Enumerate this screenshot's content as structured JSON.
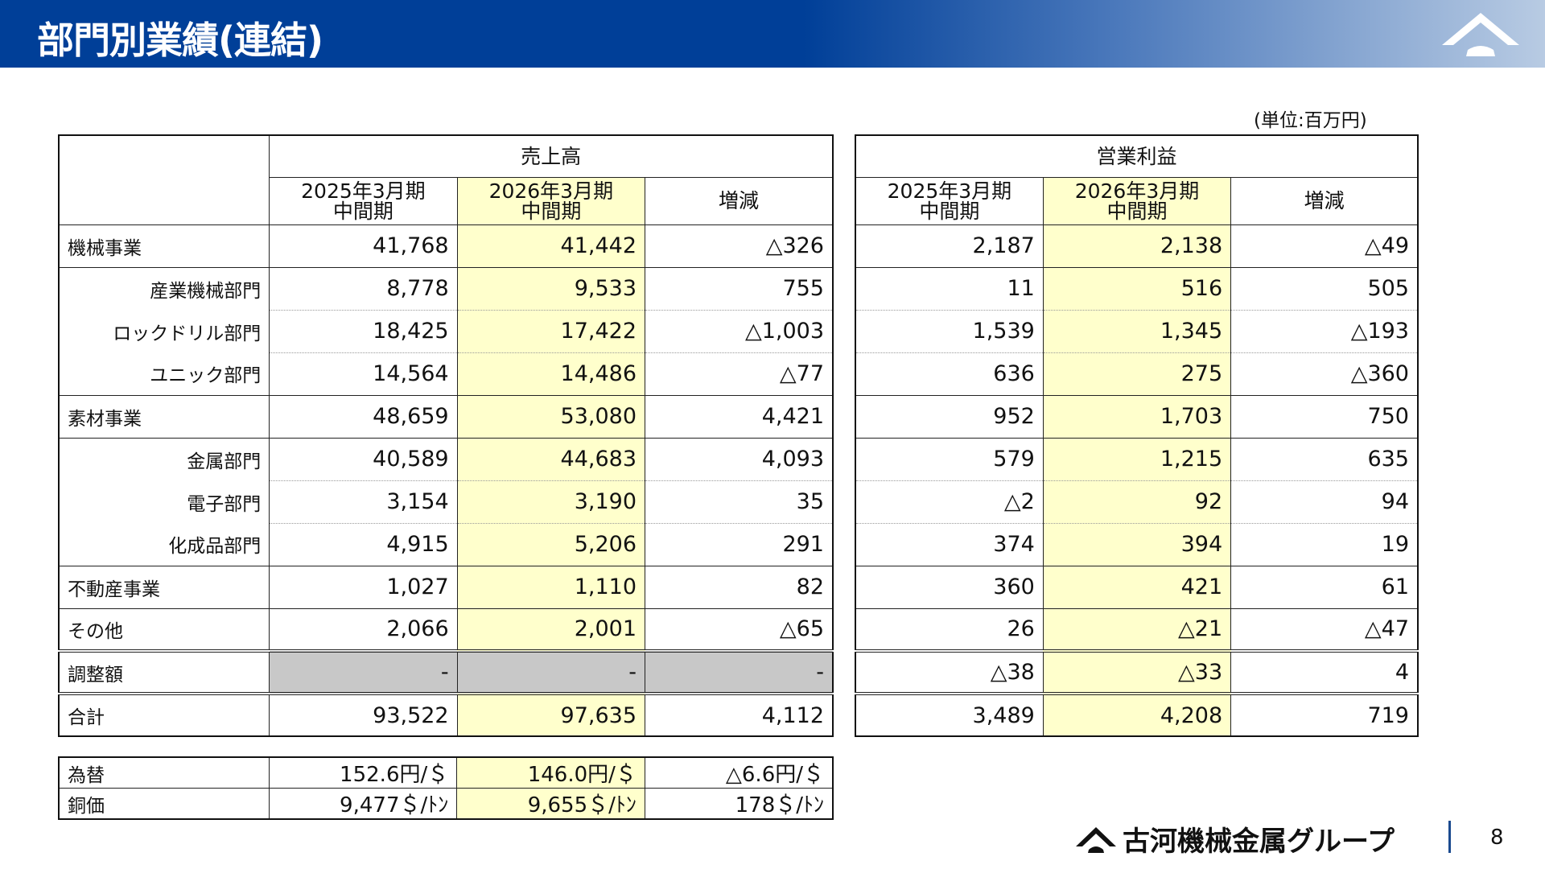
{
  "header": {
    "title": "部門別業績(連結)"
  },
  "unit": "(単位:百万円)",
  "sales": {
    "group": "売上高",
    "cols": [
      "2025年3月期\n中間期",
      "2026年3月期\n中間期",
      "増減"
    ]
  },
  "profit": {
    "group": "営業利益",
    "cols": [
      "2025年3月期\n中間期",
      "2026年3月期\n中間期",
      "増減"
    ]
  },
  "rows": [
    {
      "label": "機械事業",
      "sub": false,
      "sales": [
        "41,768",
        "41,442",
        "△326"
      ],
      "profit": [
        "2,187",
        "2,138",
        "△49"
      ]
    },
    {
      "label": "産業機械部門",
      "sub": true,
      "sales": [
        "8,778",
        "9,533",
        "755"
      ],
      "profit": [
        "11",
        "516",
        "505"
      ]
    },
    {
      "label": "ロックドリル部門",
      "sub": true,
      "sales": [
        "18,425",
        "17,422",
        "△1,003"
      ],
      "profit": [
        "1,539",
        "1,345",
        "△193"
      ]
    },
    {
      "label": "ユニック部門",
      "sub": true,
      "sales": [
        "14,564",
        "14,486",
        "△77"
      ],
      "profit": [
        "636",
        "275",
        "△360"
      ]
    },
    {
      "label": "素材事業",
      "sub": false,
      "sales": [
        "48,659",
        "53,080",
        "4,421"
      ],
      "profit": [
        "952",
        "1,703",
        "750"
      ]
    },
    {
      "label": "金属部門",
      "sub": true,
      "sales": [
        "40,589",
        "44,683",
        "4,093"
      ],
      "profit": [
        "579",
        "1,215",
        "635"
      ]
    },
    {
      "label": "電子部門",
      "sub": true,
      "sales": [
        "3,154",
        "3,190",
        "35"
      ],
      "profit": [
        "△2",
        "92",
        "94"
      ]
    },
    {
      "label": "化成品部門",
      "sub": true,
      "sales": [
        "4,915",
        "5,206",
        "291"
      ],
      "profit": [
        "374",
        "394",
        "19"
      ]
    },
    {
      "label": "不動産事業",
      "sub": false,
      "sales": [
        "1,027",
        "1,110",
        "82"
      ],
      "profit": [
        "360",
        "421",
        "61"
      ]
    },
    {
      "label": "その他",
      "sub": false,
      "sales": [
        "2,066",
        "2,001",
        "△65"
      ],
      "profit": [
        "26",
        "△21",
        "△47"
      ]
    },
    {
      "label": "調整額",
      "sub": false,
      "dbl": true,
      "gray": true,
      "sales": [
        "-",
        "-",
        "-"
      ],
      "profit": [
        "△38",
        "△33",
        "4"
      ]
    },
    {
      "label": "合計",
      "sub": false,
      "dbl": true,
      "sales": [
        "93,522",
        "97,635",
        "4,112"
      ],
      "profit": [
        "3,489",
        "4,208",
        "719"
      ]
    }
  ],
  "market": [
    {
      "label": "為替",
      "values": [
        "152.6円/＄",
        "146.0円/＄",
        "△6.6円/＄"
      ]
    },
    {
      "label": "銅価",
      "values": [
        "9,477＄/ﾄﾝ",
        "9,655＄/ﾄﾝ",
        "178＄/ﾄﾝ"
      ]
    }
  ],
  "footer": {
    "company": "古河機械金属グループ",
    "page": "8"
  },
  "colors": {
    "header_blue": "#003f98",
    "highlight": "#ffffcc",
    "adjust_gray": "#c8c8c8"
  }
}
